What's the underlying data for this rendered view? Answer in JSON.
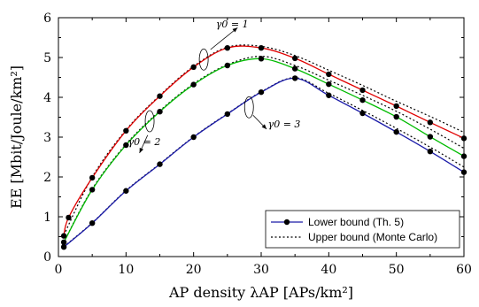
{
  "chart_data": {
    "type": "line",
    "xlabel": "AP density λAP [APs/km²]",
    "ylabel": "EE [Mbit/Joule/km²]",
    "xlim": [
      0,
      60
    ],
    "ylim": [
      0,
      6
    ],
    "xticks": [
      "0",
      "10",
      "20",
      "30",
      "40",
      "50",
      "60"
    ],
    "yticks": [
      "0",
      "1",
      "2",
      "3",
      "4",
      "5",
      "6"
    ],
    "grid": false,
    "legend_position": "bottom-right",
    "legend": [
      {
        "label": "Lower bound (Th. 5)",
        "style": "solid-marker"
      },
      {
        "label": "Upper bound (Monte Carlo)",
        "style": "dotted"
      }
    ],
    "annotations": [
      "γ0 = 1",
      "γ0 = 2",
      "γ0 = 3"
    ],
    "series": [
      {
        "group": "γ0 = 1",
        "kind": "lower",
        "color": "#e00000",
        "points": [
          [
            0.8,
            0.52
          ],
          [
            1.5,
            0.98
          ],
          [
            5,
            1.98
          ],
          [
            10,
            3.16
          ],
          [
            15,
            4.03
          ],
          [
            20,
            4.76
          ],
          [
            25,
            5.24
          ],
          [
            30,
            5.24
          ],
          [
            35,
            4.98
          ],
          [
            40,
            4.58
          ],
          [
            45,
            4.18
          ],
          [
            50,
            3.78
          ],
          [
            55,
            3.37
          ],
          [
            60,
            2.97
          ]
        ]
      },
      {
        "group": "γ0 = 1",
        "kind": "upper",
        "color": "#000000",
        "points": [
          [
            0.8,
            0.54
          ],
          [
            5,
            2.0
          ],
          [
            10,
            3.18
          ],
          [
            15,
            4.05
          ],
          [
            20,
            4.78
          ],
          [
            25,
            5.26
          ],
          [
            30,
            5.28
          ],
          [
            35,
            5.05
          ],
          [
            40,
            4.68
          ],
          [
            45,
            4.3
          ],
          [
            50,
            3.9
          ],
          [
            55,
            3.52
          ],
          [
            60,
            3.12
          ]
        ]
      },
      {
        "group": "γ0 = 2",
        "kind": "lower",
        "color": "#00bb00",
        "points": [
          [
            0.8,
            0.36
          ],
          [
            5,
            1.68
          ],
          [
            10,
            2.8
          ],
          [
            15,
            3.64
          ],
          [
            20,
            4.32
          ],
          [
            25,
            4.8
          ],
          [
            30,
            4.97
          ],
          [
            35,
            4.72
          ],
          [
            40,
            4.33
          ],
          [
            45,
            3.93
          ],
          [
            50,
            3.51
          ],
          [
            55,
            3.01
          ],
          [
            60,
            2.52
          ]
        ]
      },
      {
        "group": "γ0 = 2",
        "kind": "upper",
        "color": "#000000",
        "points": [
          [
            0.8,
            0.37
          ],
          [
            5,
            1.7
          ],
          [
            10,
            2.82
          ],
          [
            15,
            3.66
          ],
          [
            20,
            4.34
          ],
          [
            25,
            4.82
          ],
          [
            30,
            5.03
          ],
          [
            35,
            4.8
          ],
          [
            40,
            4.43
          ],
          [
            45,
            4.05
          ],
          [
            50,
            3.65
          ],
          [
            55,
            3.2
          ],
          [
            60,
            2.72
          ]
        ]
      },
      {
        "group": "γ0 = 3",
        "kind": "lower",
        "color": "#1a1aa8",
        "points": [
          [
            0.8,
            0.24
          ],
          [
            5,
            0.84
          ],
          [
            10,
            1.65
          ],
          [
            15,
            2.32
          ],
          [
            20,
            3.0
          ],
          [
            25,
            3.58
          ],
          [
            30,
            4.13
          ],
          [
            35,
            4.48
          ],
          [
            40,
            4.05
          ],
          [
            45,
            3.6
          ],
          [
            50,
            3.13
          ],
          [
            55,
            2.64
          ],
          [
            60,
            2.12
          ]
        ]
      },
      {
        "group": "γ0 = 3",
        "kind": "upper",
        "color": "#000000",
        "points": [
          [
            0.8,
            0.25
          ],
          [
            5,
            0.85
          ],
          [
            10,
            1.66
          ],
          [
            15,
            2.33
          ],
          [
            20,
            3.01
          ],
          [
            25,
            3.59
          ],
          [
            30,
            4.14
          ],
          [
            35,
            4.49
          ],
          [
            40,
            4.1
          ],
          [
            45,
            3.67
          ],
          [
            50,
            3.22
          ],
          [
            55,
            2.75
          ],
          [
            60,
            2.25
          ]
        ]
      }
    ]
  }
}
